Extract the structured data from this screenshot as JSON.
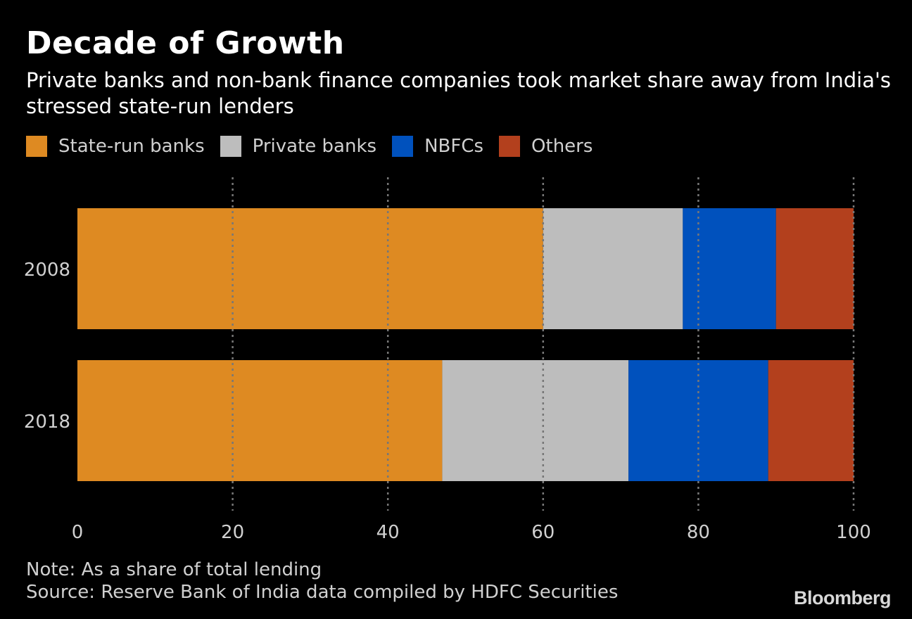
{
  "header": {
    "title": "Decade of Growth",
    "subtitle": "Private banks and non-bank finance companies took market share away from India's stressed state-run lenders"
  },
  "footer": {
    "note": "Note: As a share of total lending",
    "source": "Source: Reserve Bank of India data compiled by HDFC Securities",
    "logo": "Bloomberg"
  },
  "chart_data": {
    "type": "bar",
    "orientation": "horizontal",
    "stacked": true,
    "title": "Decade of Growth",
    "subtitle": "Private banks and non-bank finance companies took market share away from India's stressed state-run lenders",
    "categories": [
      "2008",
      "2018"
    ],
    "series": [
      {
        "name": "State-run banks",
        "color": "#de8a22",
        "values": [
          60,
          47
        ]
      },
      {
        "name": "Private banks",
        "color": "#bdbdbd",
        "values": [
          18,
          24
        ]
      },
      {
        "name": "NBFCs",
        "color": "#0051bd",
        "values": [
          12,
          18
        ]
      },
      {
        "name": "Others",
        "color": "#b3401d",
        "values": [
          10,
          11
        ]
      }
    ],
    "xlabel": "",
    "ylabel": "",
    "xlim": [
      0,
      100
    ],
    "xticks": [
      "0",
      "20",
      "40",
      "60",
      "80",
      "100"
    ],
    "grid": "vertical dotted",
    "legend": "top-left",
    "note": "Note: As a share of total lending",
    "source": "Source: Reserve Bank of India data compiled by HDFC Securities"
  }
}
